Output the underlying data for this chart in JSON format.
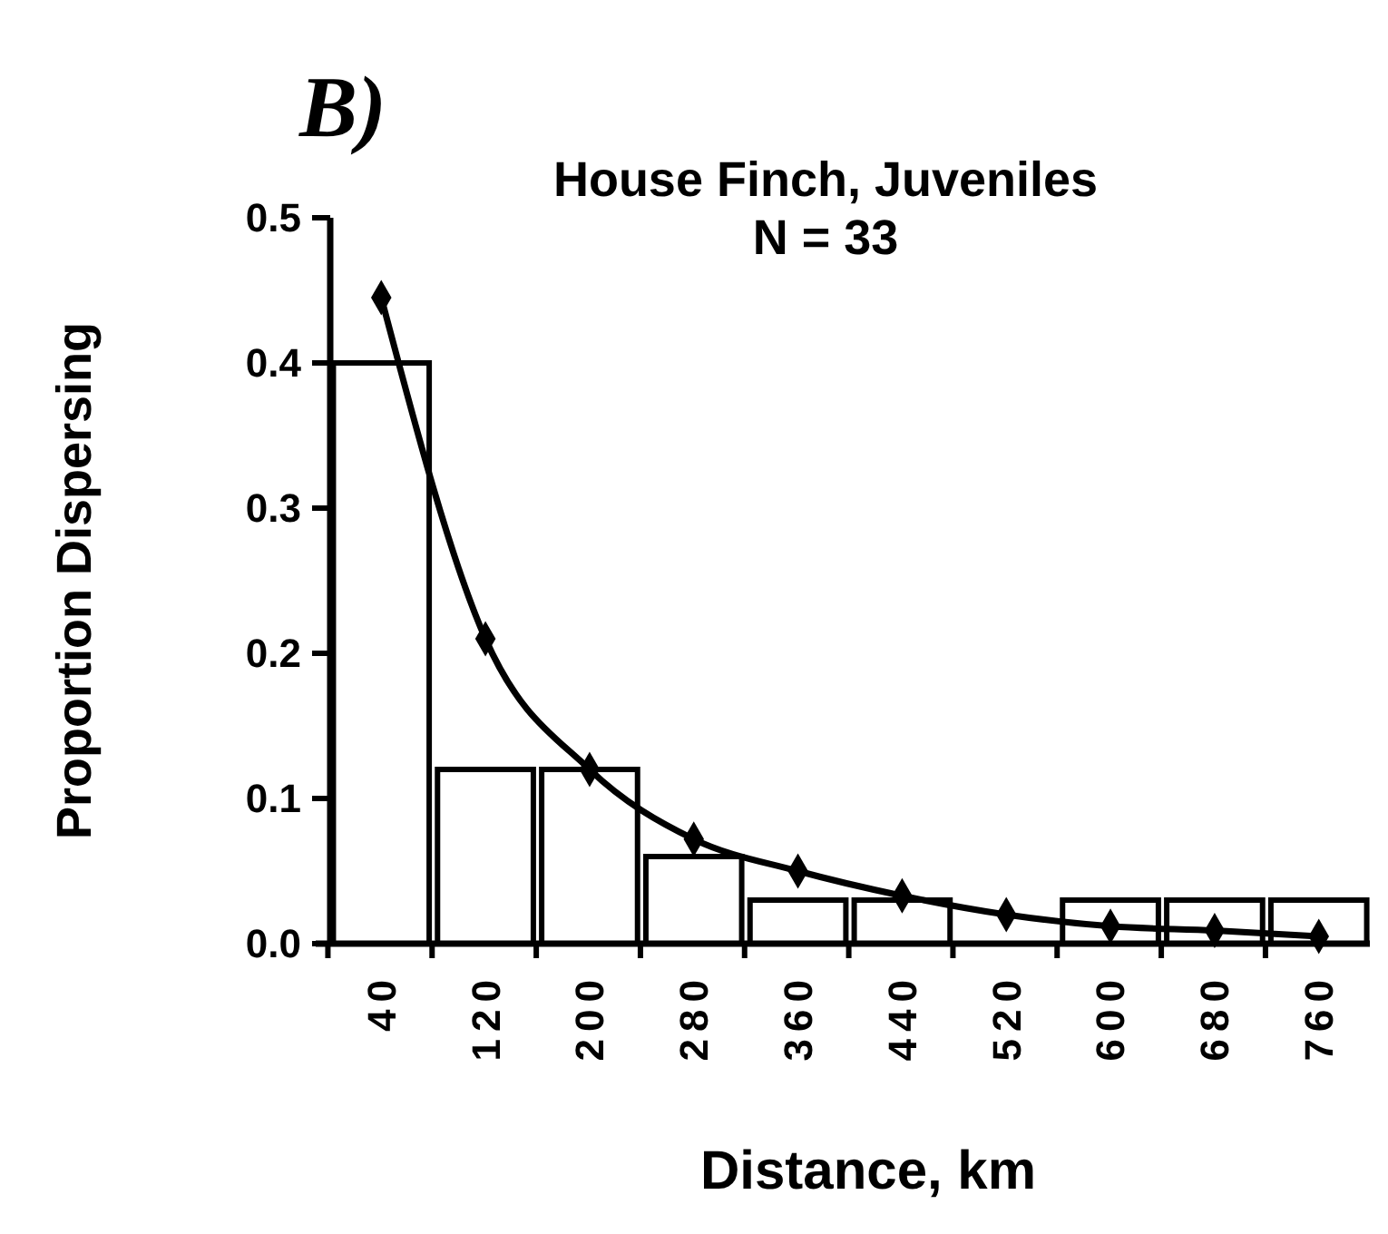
{
  "chart_data": {
    "type": "bar",
    "title": "House Finch, Juveniles",
    "subtitle": "N = 33",
    "xlabel": "Distance, km",
    "ylabel": "Proportion Dispersing",
    "annotations": [
      "B)"
    ],
    "categories": [
      "40",
      "120",
      "200",
      "280",
      "360",
      "440",
      "520",
      "600",
      "680",
      "760"
    ],
    "series": [
      {
        "color": "#ffffff",
        "values": [
          0.4,
          0.12,
          0.12,
          0.06,
          0.03,
          0.03,
          0,
          0.03,
          0.03,
          0.03
        ]
      },
      {
        "type": "line",
        "color": "#000000",
        "values": [
          0.445,
          0.21,
          0.12,
          0.072,
          0.05,
          0.033,
          0.02,
          0.012,
          0.009,
          0.005
        ]
      }
    ],
    "ylim": [
      0,
      0.5
    ],
    "yticks": [
      {
        "value": 0,
        "label": "0.0"
      },
      0.1,
      0.2,
      0.3,
      0.4,
      0.5
    ],
    "grid": false,
    "marker": "diamond",
    "line_style": "solid"
  }
}
